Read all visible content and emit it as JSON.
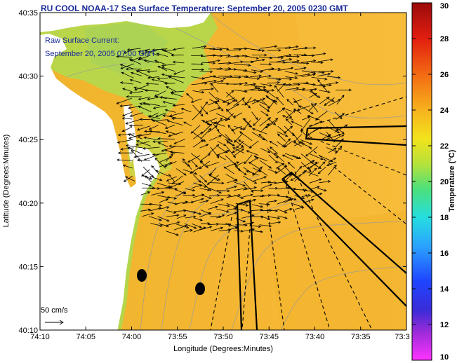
{
  "title": "RU COOL  NOAA-17  Sea Surface Temperature:  September 20, 2005 0230 GMT",
  "annotation": {
    "line1": "Raw Surface Current:",
    "line2": "September 20, 2005 07:00 GMT"
  },
  "scale": {
    "label": "50 cm/s"
  },
  "colorbar": {
    "label": "Temperature (°C)",
    "min": 10,
    "max": 30,
    "ticks": [
      "10",
      "12",
      "14",
      "16",
      "18",
      "20",
      "22",
      "24",
      "26",
      "28",
      "30"
    ]
  },
  "map_data": {
    "x_axis": {
      "label": "Longitude (Degrees:Minutes)",
      "ticks": [
        "74:10",
        "74:05",
        "74:00",
        "73:55",
        "73:50",
        "73:45",
        "73:40",
        "73:35",
        "73:3"
      ]
    },
    "y_axis": {
      "label": "Latitude (Degrees:Minutes)",
      "ticks": [
        "40:10",
        "40:15",
        "40:20",
        "40:25",
        "40:30",
        "40:35"
      ]
    }
  },
  "colors": {
    "sea": "#f4b730",
    "coast_green": "#b5d84a",
    "land": "#ffffff",
    "title_blue": "#1a2a9a"
  }
}
